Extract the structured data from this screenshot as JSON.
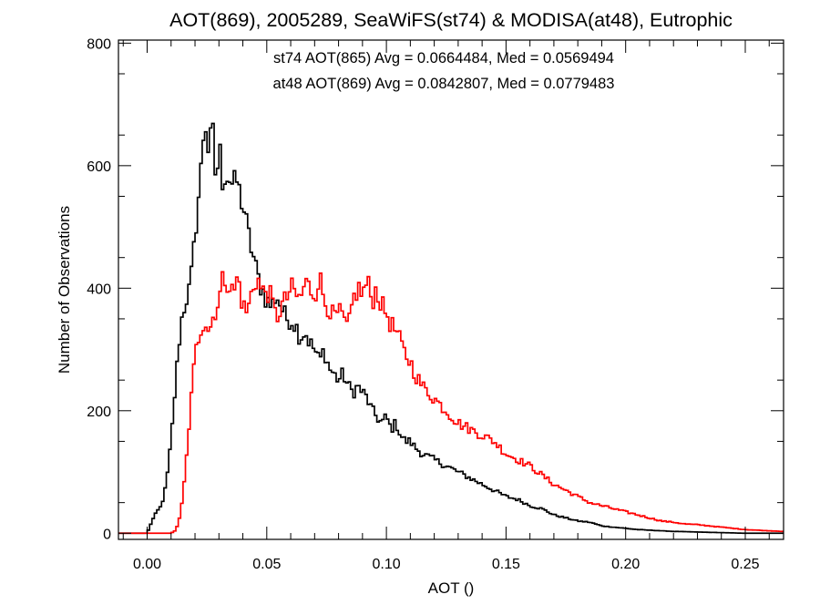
{
  "chart_data": {
    "type": "line",
    "title": "AOT(869), 2005289, SeaWiFS(st74) & MODISA(at48), Eutrophic",
    "xlabel": "AOT ()",
    "ylabel": "Number of Observations",
    "xlim": [
      -0.012,
      0.266
    ],
    "ylim": [
      -10,
      805
    ],
    "x_ticks": [
      {
        "value": 0.0,
        "label": "0.00"
      },
      {
        "value": 0.05,
        "label": "0.05"
      },
      {
        "value": 0.1,
        "label": "0.10"
      },
      {
        "value": 0.15,
        "label": "0.15"
      },
      {
        "value": 0.2,
        "label": "0.20"
      },
      {
        "value": 0.25,
        "label": "0.25"
      }
    ],
    "y_ticks": [
      {
        "value": 0,
        "label": "0"
      },
      {
        "value": 200,
        "label": "200"
      },
      {
        "value": 400,
        "label": "400"
      },
      {
        "value": 600,
        "label": "600"
      },
      {
        "value": 800,
        "label": "800"
      }
    ],
    "annotations": [
      {
        "text": "st74 AOT(865) Avg = 0.0664484, Med = 0.0569494",
        "color": "#000000"
      },
      {
        "text": "at48 AOT(869) Avg = 0.0842807, Med = 0.0779483",
        "color": "#ff0000"
      }
    ],
    "bin_width": 0.001,
    "grid": false,
    "series": [
      {
        "color": "#000000",
        "x": [
          -0.012,
          -0.006,
          0.0,
          0.002,
          0.004,
          0.006,
          0.008,
          0.01,
          0.012,
          0.014,
          0.016,
          0.018,
          0.02,
          0.021,
          0.022,
          0.023,
          0.024,
          0.025,
          0.026,
          0.027,
          0.028,
          0.029,
          0.03,
          0.031,
          0.032,
          0.033,
          0.034,
          0.035,
          0.036,
          0.037,
          0.038,
          0.04,
          0.042,
          0.044,
          0.046,
          0.048,
          0.05,
          0.052,
          0.054,
          0.056,
          0.058,
          0.06,
          0.062,
          0.064,
          0.066,
          0.068,
          0.07,
          0.072,
          0.074,
          0.076,
          0.078,
          0.08,
          0.082,
          0.084,
          0.086,
          0.088,
          0.09,
          0.092,
          0.094,
          0.096,
          0.098,
          0.1,
          0.102,
          0.104,
          0.106,
          0.108,
          0.11,
          0.112,
          0.115,
          0.12,
          0.125,
          0.13,
          0.135,
          0.14,
          0.145,
          0.15,
          0.155,
          0.16,
          0.165,
          0.17,
          0.175,
          0.18,
          0.185,
          0.19,
          0.195,
          0.2,
          0.205,
          0.21,
          0.215,
          0.22,
          0.23,
          0.24,
          0.25,
          0.26,
          0.266
        ],
        "values": [
          0,
          0,
          0,
          20,
          35,
          45,
          80,
          150,
          250,
          340,
          380,
          400,
          480,
          540,
          560,
          620,
          680,
          660,
          600,
          670,
          620,
          560,
          640,
          590,
          570,
          610,
          560,
          600,
          540,
          590,
          560,
          540,
          490,
          460,
          420,
          400,
          380,
          370,
          390,
          370,
          350,
          350,
          340,
          320,
          330,
          310,
          300,
          280,
          300,
          270,
          260,
          250,
          260,
          240,
          230,
          240,
          230,
          220,
          200,
          190,
          180,
          190,
          170,
          180,
          160,
          150,
          150,
          140,
          130,
          120,
          110,
          100,
          90,
          80,
          70,
          60,
          55,
          45,
          40,
          30,
          25,
          20,
          18,
          12,
          10,
          8,
          6,
          5,
          4,
          3,
          2,
          1,
          0,
          0,
          0
        ]
      },
      {
        "color": "#ff0000",
        "x": [
          -0.012,
          0.01,
          0.012,
          0.014,
          0.016,
          0.018,
          0.02,
          0.022,
          0.024,
          0.026,
          0.028,
          0.03,
          0.032,
          0.034,
          0.036,
          0.038,
          0.04,
          0.042,
          0.044,
          0.046,
          0.048,
          0.05,
          0.052,
          0.054,
          0.056,
          0.058,
          0.06,
          0.062,
          0.064,
          0.066,
          0.068,
          0.07,
          0.072,
          0.074,
          0.076,
          0.078,
          0.08,
          0.082,
          0.084,
          0.086,
          0.088,
          0.09,
          0.092,
          0.094,
          0.096,
          0.098,
          0.1,
          0.102,
          0.104,
          0.106,
          0.108,
          0.11,
          0.112,
          0.115,
          0.12,
          0.125,
          0.13,
          0.135,
          0.14,
          0.145,
          0.15,
          0.155,
          0.16,
          0.165,
          0.17,
          0.175,
          0.18,
          0.185,
          0.19,
          0.195,
          0.2,
          0.205,
          0.21,
          0.215,
          0.22,
          0.225,
          0.23,
          0.235,
          0.24,
          0.245,
          0.25,
          0.255,
          0.26,
          0.266
        ],
        "values": [
          0,
          0,
          5,
          30,
          100,
          200,
          290,
          330,
          350,
          330,
          360,
          380,
          420,
          410,
          390,
          420,
          370,
          360,
          400,
          420,
          390,
          400,
          380,
          350,
          370,
          380,
          400,
          390,
          380,
          410,
          400,
          390,
          420,
          380,
          370,
          350,
          360,
          350,
          330,
          380,
          400,
          390,
          410,
          380,
          400,
          370,
          360,
          340,
          330,
          310,
          290,
          280,
          260,
          240,
          220,
          200,
          180,
          170,
          160,
          150,
          130,
          120,
          110,
          95,
          80,
          70,
          60,
          50,
          45,
          40,
          35,
          30,
          25,
          20,
          18,
          15,
          14,
          12,
          10,
          8,
          6,
          5,
          4,
          3
        ]
      }
    ]
  }
}
